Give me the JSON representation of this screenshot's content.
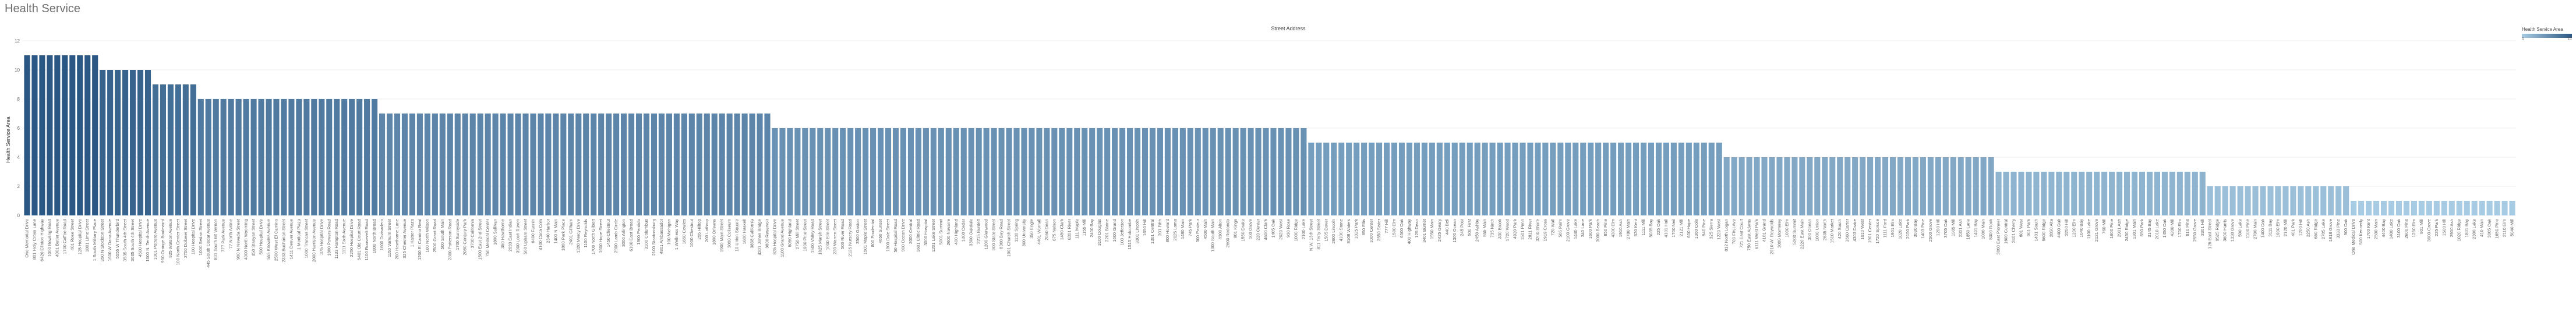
{
  "page": {
    "title": "Health Service"
  },
  "colors": {
    "low": "#a7cbe3",
    "high": "#2a5783",
    "grid": "#ececec",
    "axis_text": "#666666"
  },
  "legend": {
    "title": "Health Service Area",
    "min_label": "1",
    "max_label": "11"
  },
  "chart_data": {
    "type": "bar",
    "title": "Street Address",
    "xlabel": "",
    "ylabel": "Health Service Area",
    "ylim": [
      0,
      12
    ],
    "yticks": [
      0,
      2,
      4,
      6,
      8,
      10,
      12
    ],
    "grid": true,
    "legend_position": "top-right",
    "groups": [
      {
        "value": 11,
        "categories": [
          "One Memorial Drive",
          "801 Holy Cross Lane",
          "6420 Clinton Highway",
          "1000 Bowling Road",
          "4001 Butler Avenue",
          "1700 Coffee Road",
          "401 Rose Street",
          "125 Hospital Drive",
          "1801 Lime Street",
          "1 South Military Place"
        ]
      },
      {
        "value": 10,
        "categories": [
          "350 N Stockton Street",
          "1600 W Dana Avenue",
          "5555 W Thunderbird",
          "3535 South 4th Street",
          "3035 South 4th Street",
          "4500 Hospital Drive",
          "1000 N. Tenth Avenue"
        ]
      },
      {
        "value": 9,
        "categories": [
          "1001 Potrero Avenue",
          "950 Orange Boulevard",
          "925 Watson Avenue",
          "100 North Center Street",
          "2700 Dolbeer Street",
          "100 Hospital Drive"
        ]
      },
      {
        "value": 8,
        "categories": [
          "1000 Sedan Street",
          "445 South Cedar Avenue",
          "801 South Mt Vernon",
          "777 Park Avenue",
          "77 North Airline",
          "900 N Nevada Street",
          "4000 North Wyoming",
          "450 Stanyan Street",
          "500 Hospital Drive",
          "555 Knowles Avenue",
          "2500 West El Camino",
          "2333 Buchanan Street",
          "1411 Denver Avenue",
          "1 Medical Plaza",
          "1000 Trancas Street",
          "2000 Harrison Avenue",
          "375 Hospital Drive",
          "1800 Powers Road",
          "1133 Hampton Road",
          "1111 Sixth Avenue",
          "2250 Hospital Drive",
          "5401 Old Court Road",
          "1100 Roosevelt Road",
          "1800 North Broad"
        ]
      },
      {
        "value": 7,
        "categories": [
          "1600 Divisadero",
          "1150 Varnum Street",
          "200 Hawthorne Lane",
          "325 Chester Avenue",
          "1 Kaiser Plaza",
          "1200 El Camino Real",
          "100 North Wilson",
          "2500 Grant Road",
          "500 South Main",
          "2300 Patterson Road",
          "1700 Sunnyside",
          "2080 Century Park",
          "3700 California",
          "1500 East 2nd Street",
          "750 Medical Center",
          "1800 Sullivan",
          "350 Hawthorne",
          "2633 East Indian",
          "3900 Loch Raven",
          "500 Upham Street",
          "6400 Fannin",
          "4100 Coca Cola",
          "2340 Harbor",
          "1400 N Main",
          "1800 Park Place",
          "2401 Gillham",
          "1320 Mercy Drive",
          "1100 Reynolds",
          "1700 North Gilbert",
          "1600 Hope Street",
          "1450 Chestnut",
          "2900 Lamb Circle",
          "3000 Arlington",
          "6100 East Broad",
          "1900 Perdido",
          "3100 Columbus",
          "2100 Stantonsburg",
          "4801 Ambassador",
          "100 Michigan",
          "1 Wellness Way",
          "1650 Cowles",
          "1000 Chestnut",
          "255 Hilltop",
          "200 Lothrop",
          "1800 Orleans",
          "1900 Main Street",
          "3000 Coliseum",
          "10 Union Square",
          "1600 Haskell",
          "3838 California",
          "4301 Jones Bridge",
          "3800 Reservoir"
        ]
      },
      {
        "value": 6,
        "categories": [
          "825 Hospital Drive",
          "1100 Grand Avenue",
          "5050 Highland",
          "2750 Mill Street",
          "1900 Pine Street",
          "1500 Valley Road",
          "1025 Marsh Street",
          "1000 Elm Street",
          "220 Warren Street",
          "500 River Road",
          "2125 Nursery Road",
          "3500 Gaston",
          "1501 Maple Street",
          "800 Prudential",
          "4650 Sunset",
          "1800 Dale Street",
          "50 Hospital Road",
          "900 Ocean Drive",
          "2000 Central",
          "1601 Clinic Road",
          "3000 Hospital",
          "1201 Lake Street",
          "5001 Summit",
          "2600 Navarre",
          "400 Highland",
          "1400 Cedar",
          "3300 Oakdale",
          "2215 Burdett",
          "1200 Glenwood",
          "900 State Street",
          "8300 Bay Road",
          "1901 Church Street",
          "1130 Spring",
          "300 University",
          "350 Engle",
          "4401 Wornall",
          "2050 Dean",
          "675 Nelson",
          "1450 Clark",
          "6301 River",
          "111 Maple",
          "1155 Mill",
          "2400 Bay",
          "3100 Douglas",
          "2201 Blaine",
          "1600 Grand",
          "100 Jefferson",
          "1515 Holcombe",
          "3301 Lincoln",
          "1650 Hill",
          "1301 Central",
          "201 Fifth",
          "800 Howard",
          "2025 Loma",
          "1480 Main",
          "745 Park",
          "300 Pasteur",
          "4500 Main",
          "1300 South Main",
          "4300 Alton",
          "2600 Redondo",
          "901 Kings",
          "1550 Drake",
          "100 Grove",
          "220 Center",
          "4600 Clark",
          "1405 Oak",
          "2020 West",
          "930 Rose",
          "1000 Ridge",
          "2100 Lake"
        ]
      },
      {
        "value": 5,
        "categories": [
          "N.W. 13th Street",
          "811 Terry Street",
          "1505 Dover",
          "2600 Lincoln",
          "4100 Stone",
          "8108 Waters",
          "1025 Park",
          "850 Ellis",
          "1000 Center",
          "2550 Sister",
          "777 Hill",
          "1580 Elm",
          "6500 Oak",
          "400 Highway",
          "125 Dean",
          "3401 Burnet",
          "1950 Main",
          "2425 Geary",
          "440 Bell",
          "1300 Ocean",
          "245 Post",
          "900 First",
          "2450 Ashby",
          "555 Main",
          "735 Ninth",
          "330 Brook",
          "1720 Wood",
          "4920 Park",
          "1501 Penn",
          "2811 River",
          "3200 Shore",
          "1919 Cross",
          "720 Wall",
          "505 Palm",
          "2100 Grove",
          "1440 Lake",
          "340 Lane",
          "1600 Park",
          "3000 Beach",
          "850 Pine",
          "4300 Elm",
          "1910 Ash",
          "2780 Main",
          "520 Kent",
          "1111 Mill",
          "5035 Bay",
          "225 Oak",
          "4101 Hall",
          "1700 Neil",
          "2121 Mill",
          "600 Hope",
          "1360 Cole",
          "940 Pine",
          "325 Sierra",
          "1220 West"
        ]
      },
      {
        "value": 4,
        "categories": [
          "812 North Logan",
          "700 First Ave",
          "721 East Court",
          "750 East Adams",
          "6111 West Park",
          "4101 Grand",
          "2910 W. Reynolds",
          "3000 Monterey",
          "1000 Elm",
          "5200 Summit",
          "2220 East Main",
          "300 Ocean",
          "1000 Union",
          "2635 North",
          "1510 Market",
          "420 South",
          "3560 Carter",
          "4303 Drake",
          "1010 West",
          "1901 Center",
          "1720 Spruce",
          "1111 Ford",
          "1901 Elm",
          "1020 Lake",
          "2150 Park",
          "3030 Bay",
          "1403 Pine",
          "2500 Grove",
          "1200 Hill",
          "3705 Oak",
          "1905 Mill",
          "2301 Ash",
          "1850 Lane",
          "1401 Bay",
          "1000 Main",
          "5300 Rock"
        ]
      },
      {
        "value": 3,
        "categories": [
          "3000 East Pioneer",
          "1600 Central",
          "2401 Cherry",
          "601 West",
          "901 Park",
          "1401 South",
          "5600 Ridge",
          "2850 Alta",
          "4400 Oak",
          "3200 Hill",
          "1200 Elm",
          "1040 Bay",
          "1100 Lake",
          "2121 Grove",
          "760 Mill",
          "1600 Pine",
          "2901 Ash",
          "2450 Ridge",
          "1301 Main",
          "650 Park",
          "3145 Bay",
          "2010 Lake",
          "1450 Oak",
          "4200 Mill",
          "1700 Elm",
          "810 Pine",
          "2550 Grove",
          "3301 Hill"
        ]
      },
      {
        "value": 2,
        "categories": [
          "125 East Street",
          "9525 Ridge",
          "3600 Harris",
          "1330 Grove",
          "500 Lake",
          "1100 Pine",
          "2700 Main",
          "1400 Oak",
          "3111 Bay",
          "1900 Elm",
          "2120 Mill",
          "401 Park",
          "1200 Hill",
          "2250 Ash",
          "650 Ridge",
          "2705 Lake",
          "1818 Grove",
          "3333 Pine",
          "900 Oak"
        ]
      },
      {
        "value": 1,
        "categories": [
          "One Medical Drive",
          "500 Kennedy",
          "1700 Kent",
          "2500 Main",
          "4400 Bay",
          "1400 Lake",
          "3100 Oak",
          "2600 Pine",
          "1250 Elm",
          "901 Mill",
          "3600 Grove",
          "225 Park",
          "1500 Hill",
          "2900 Ash",
          "1020 Ridge",
          "1801 Bay",
          "2300 Lake",
          "410 Main",
          "3005 Oak",
          "1650 Pine",
          "2110 Elm",
          "5040 Mill"
        ]
      }
    ]
  }
}
